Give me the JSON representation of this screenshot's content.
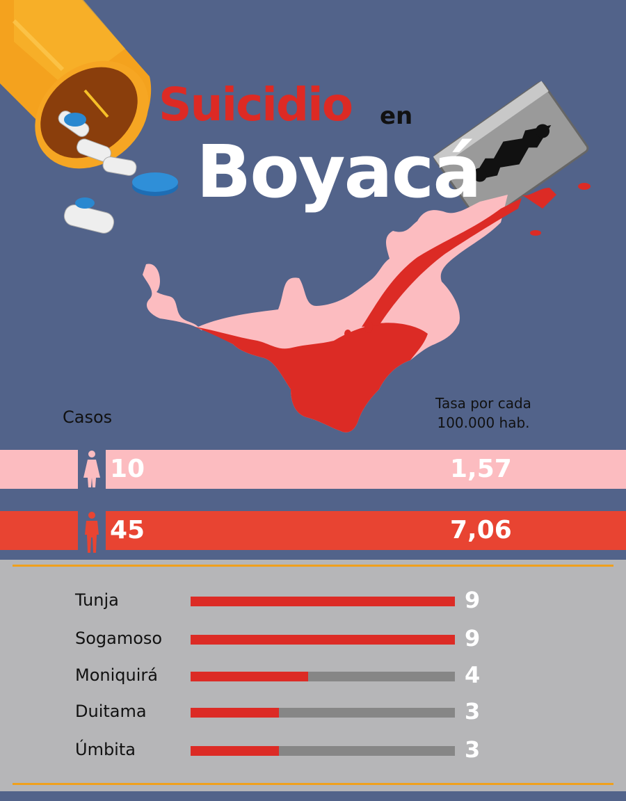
{
  "title": {
    "main": "Suicidio",
    "connector": "en",
    "place": "Boyacá"
  },
  "labels": {
    "cases": "Casos",
    "rate": "Tasa por cada 100.000 hab."
  },
  "colors": {
    "background": "#52638a",
    "female": "#fcbcc0",
    "male": "#e84432",
    "blood": "#dc2b25",
    "bar_track": "#868686",
    "panel": "#b6b6b8",
    "divider": "#f0a01c"
  },
  "icons": [
    "pill-bottle-icon",
    "pill-icon",
    "razor-blade-icon",
    "boyaca-map-icon",
    "female-icon",
    "male-icon"
  ],
  "summary": [
    {
      "sex": "female",
      "icon": "female-icon",
      "cases": "10",
      "rate": "1,57"
    },
    {
      "sex": "male",
      "icon": "male-icon",
      "cases": "45",
      "rate": "7,06"
    }
  ],
  "chart_data": {
    "type": "bar",
    "categories": [
      "Tunja",
      "Sogamoso",
      "Moniquirá",
      "Duitama",
      "Úmbita"
    ],
    "values": [
      9,
      9,
      4,
      3,
      3
    ],
    "value_labels": [
      "9",
      "9",
      "4",
      "3",
      "3"
    ],
    "orientation": "horizontal",
    "xlim": [
      0,
      9
    ],
    "grid": false
  }
}
